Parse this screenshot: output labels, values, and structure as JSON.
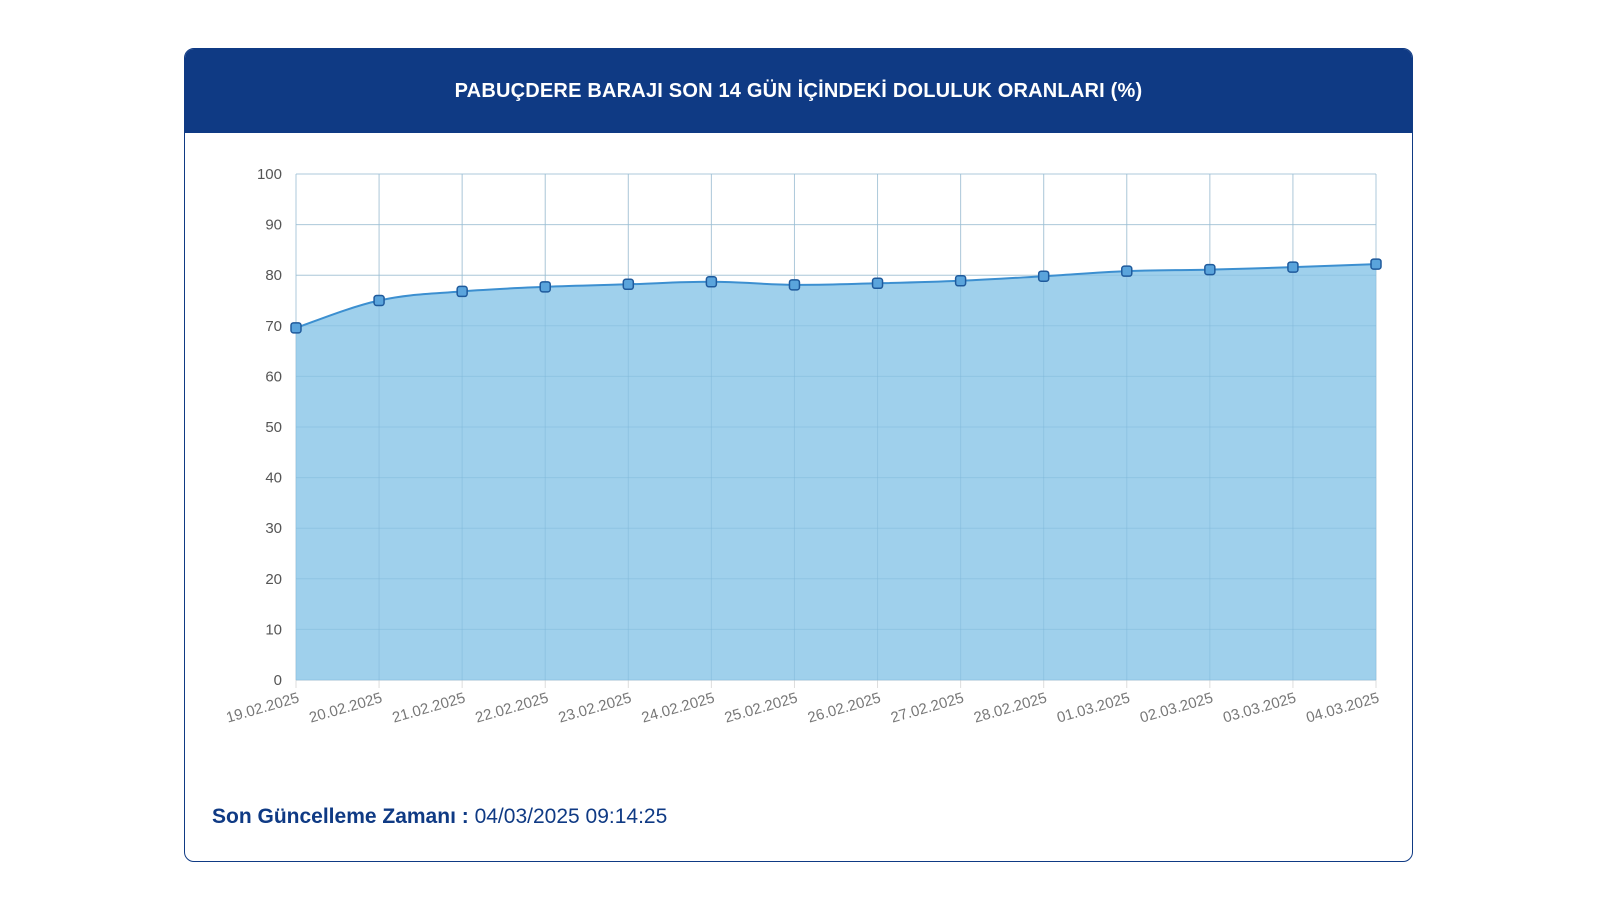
{
  "header": {
    "title": "PABUÇDERE BARAJI SON 14 GÜN İÇİNDEKİ DOLULUK ORANLARI (%)"
  },
  "footer": {
    "label": "Son Güncelleme Zamanı :",
    "value": "04/03/2025 09:14:25"
  },
  "colors": {
    "header_bg": "#0f3a84",
    "area_fill": "#9fd0ec",
    "line": "#3c8fd0",
    "marker_fill": "#5aa4dc",
    "marker_stroke": "#1f5a9c",
    "grid": "#dddddd",
    "text_dark": "#0f3a84"
  },
  "chart_data": {
    "type": "area",
    "title": "PABUÇDERE BARAJI SON 14 GÜN İÇİNDEKİ DOLULUK ORANLARI (%)",
    "categories": [
      "19.02.2025",
      "20.02.2025",
      "21.02.2025",
      "22.02.2025",
      "23.02.2025",
      "24.02.2025",
      "25.02.2025",
      "26.02.2025",
      "27.02.2025",
      "28.02.2025",
      "01.03.2025",
      "02.03.2025",
      "03.03.2025",
      "04.03.2025"
    ],
    "series": [
      {
        "values": [
          69.6,
          75.0,
          76.8,
          77.7,
          78.2,
          78.7,
          78.1,
          78.4,
          78.9,
          79.8,
          80.8,
          81.1,
          81.6,
          82.2
        ]
      }
    ],
    "ylim": [
      0,
      100
    ],
    "yticks": [
      0,
      10,
      20,
      30,
      40,
      50,
      60,
      70,
      80,
      90,
      100
    ],
    "xlabel": "",
    "ylabel": "",
    "grid": true,
    "legend": "none"
  }
}
